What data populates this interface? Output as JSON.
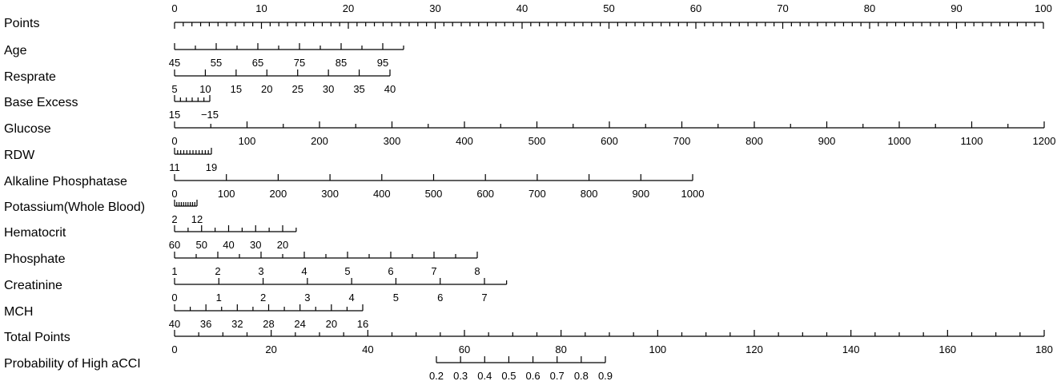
{
  "chart_data": {
    "type": "nomogram",
    "title": "",
    "points_scale": [
      0,
      100
    ],
    "total_points_scale": [
      0,
      180
    ],
    "rows": [
      {
        "label": "Points",
        "ticks": [
          0,
          10,
          20,
          30,
          40,
          50,
          60,
          70,
          80,
          90,
          100
        ],
        "labels": [
          "0",
          "10",
          "20",
          "30",
          "40",
          "50",
          "60",
          "70",
          "80",
          "90",
          "100"
        ],
        "minor_per_major": 10,
        "label_side": "above"
      },
      {
        "label": "Age",
        "ticks": [
          45,
          55,
          65,
          75,
          85,
          95
        ],
        "labels": [
          "45",
          "55",
          "65",
          "75",
          "85",
          "95"
        ],
        "minor_per_major": 2,
        "end_value": 100
      },
      {
        "label": "Resprate",
        "ticks": [
          5,
          10,
          15,
          20,
          25,
          30,
          35,
          40
        ],
        "labels": [
          "5",
          "10",
          "15",
          "20",
          "25",
          "30",
          "35",
          "40"
        ],
        "minor_per_major": 1
      },
      {
        "label": "Base Excess",
        "ticks": [
          15,
          -15
        ],
        "labels": [
          "15",
          "−15"
        ],
        "minor_per_major": 6
      },
      {
        "label": "Glucose",
        "ticks": [
          0,
          100,
          200,
          300,
          400,
          500,
          600,
          700,
          800,
          900,
          1000,
          1100,
          1200
        ],
        "labels": [
          "0",
          "100",
          "200",
          "300",
          "400",
          "500",
          "600",
          "700",
          "800",
          "900",
          "1000",
          "1100",
          "1200"
        ],
        "minor_per_major": 2
      },
      {
        "label": "RDW",
        "ticks": [
          11,
          19
        ],
        "labels": [
          "11",
          "19"
        ],
        "minor_per_major": 12
      },
      {
        "label": "Alkaline Phosphatase",
        "ticks": [
          0,
          100,
          200,
          300,
          400,
          500,
          600,
          700,
          800,
          900,
          1000
        ],
        "labels": [
          "0",
          "100",
          "200",
          "300",
          "400",
          "500",
          "600",
          "700",
          "800",
          "900",
          "1000"
        ],
        "minor_per_major": 1
      },
      {
        "label": "Potassium(Whole Blood)",
        "ticks": [
          2,
          12
        ],
        "labels": [
          "2",
          "12"
        ],
        "minor_per_major": 10
      },
      {
        "label": "Hematocrit",
        "ticks": [
          60,
          50,
          40,
          30,
          20
        ],
        "labels": [
          "60",
          "50",
          "40",
          "30",
          "20"
        ],
        "minor_per_major": 2,
        "end_value": 15
      },
      {
        "label": "Phosphate",
        "ticks": [
          1,
          2,
          3,
          4,
          5,
          6,
          7,
          8
        ],
        "labels": [
          "1",
          "2",
          "3",
          "4",
          "5",
          "6",
          "7",
          "8"
        ],
        "minor_per_major": 2
      },
      {
        "label": "Creatinine",
        "ticks": [
          0,
          1,
          2,
          3,
          4,
          5,
          6,
          7
        ],
        "labels": [
          "0",
          "1",
          "2",
          "3",
          "4",
          "5",
          "6",
          "7"
        ],
        "minor_per_major": 1,
        "end_value": 7.5
      },
      {
        "label": "MCH",
        "ticks": [
          40,
          36,
          32,
          28,
          24,
          20,
          16
        ],
        "labels": [
          "40",
          "36",
          "32",
          "28",
          "24",
          "20",
          "16"
        ],
        "minor_per_major": 2
      },
      {
        "label": "Total Points",
        "ticks": [
          0,
          20,
          40,
          60,
          80,
          100,
          120,
          140,
          160,
          180
        ],
        "labels": [
          "0",
          "20",
          "40",
          "60",
          "80",
          "100",
          "120",
          "140",
          "160",
          "180"
        ],
        "minor_per_major": 4
      },
      {
        "label": "Probability of High aCCI",
        "ticks": [
          0.2,
          0.3,
          0.4,
          0.5,
          0.6,
          0.7,
          0.8,
          0.9
        ],
        "labels": [
          "0.2",
          "0.3",
          "0.4",
          "0.5",
          "0.6",
          "0.7",
          "0.8",
          "0.9"
        ],
        "minor_per_major": 1
      }
    ]
  }
}
